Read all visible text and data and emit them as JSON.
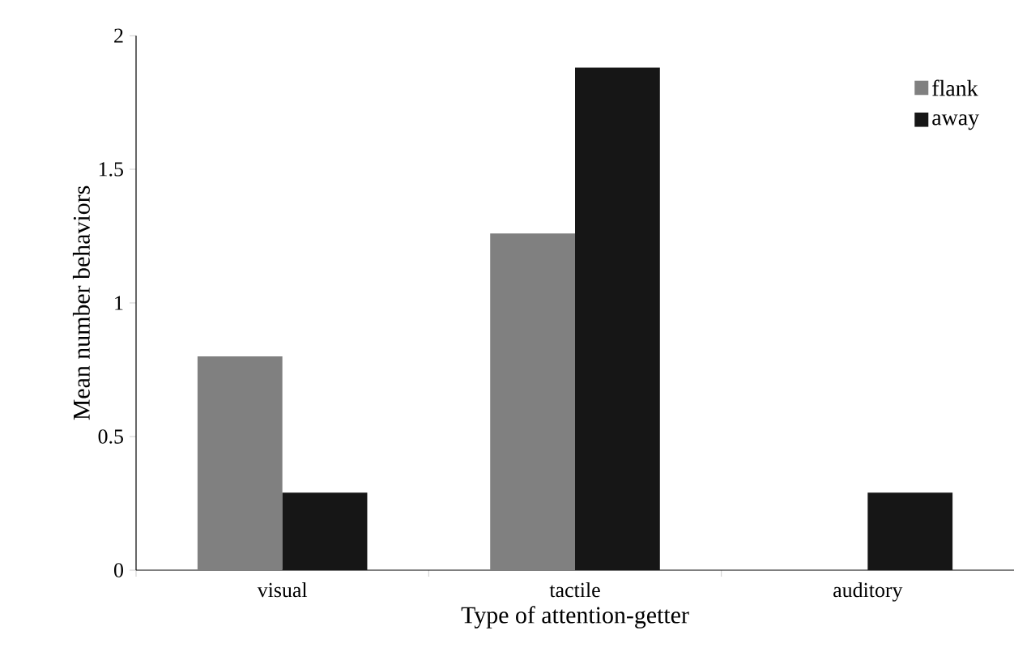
{
  "chart_data": {
    "type": "bar",
    "xlabel": "Type of attention-getter",
    "ylabel": "Mean number behaviors",
    "categories": [
      "visual",
      "tactile",
      "auditory"
    ],
    "series": [
      {
        "name": "flank",
        "color": "#808080",
        "values": [
          0.8,
          1.26,
          0
        ]
      },
      {
        "name": "away",
        "color": "#161616",
        "values": [
          0.29,
          1.88,
          0.29
        ]
      }
    ],
    "ylim": [
      0,
      2
    ],
    "yticks": [
      0,
      0.5,
      1,
      1.5,
      2
    ],
    "legend": "top right"
  }
}
